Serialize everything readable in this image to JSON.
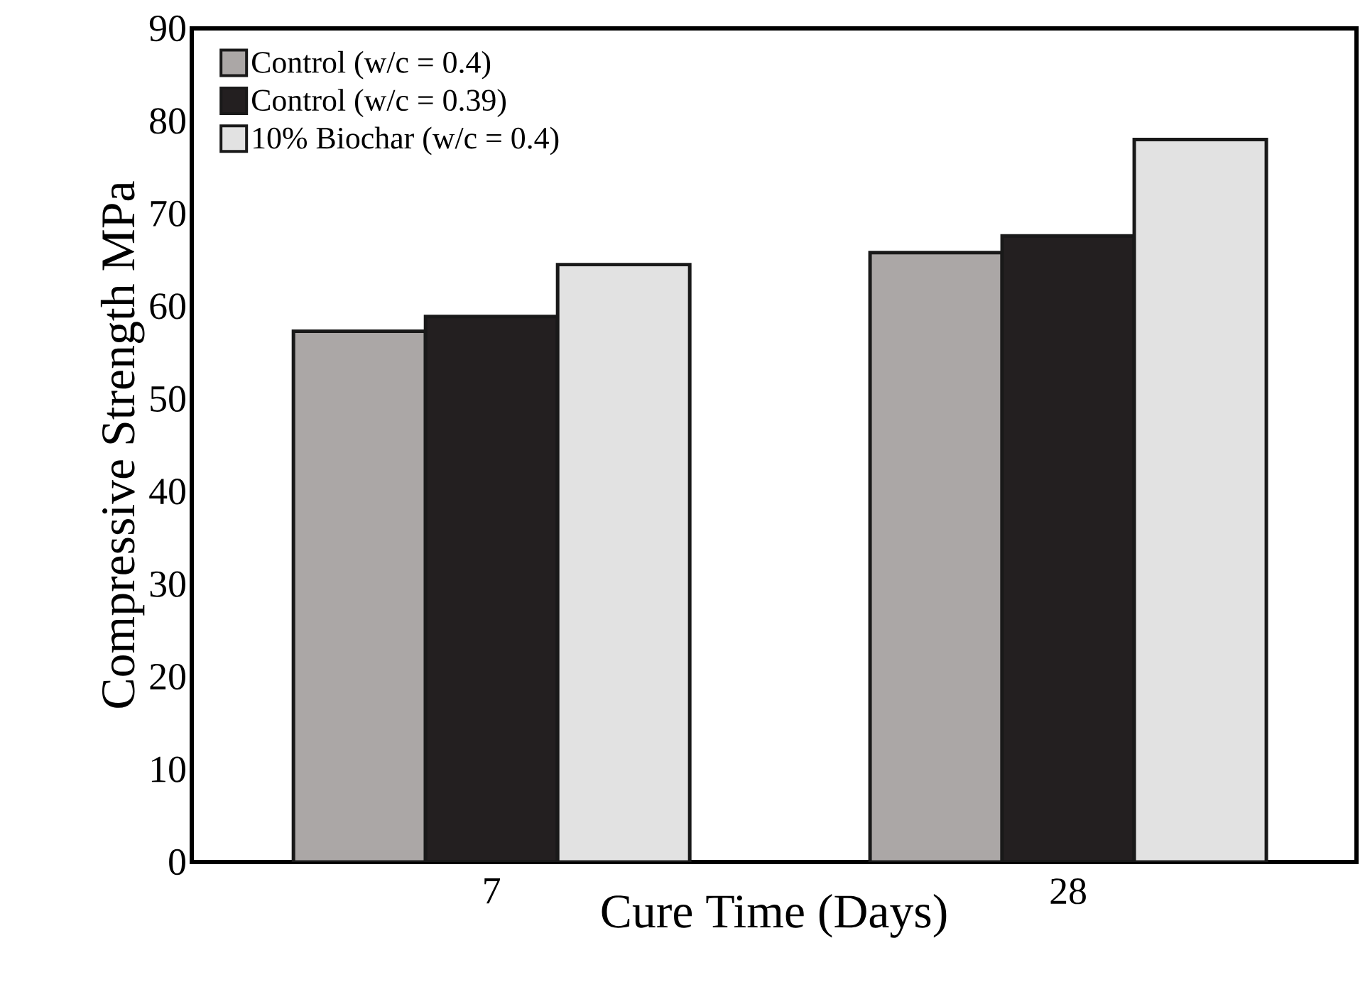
{
  "chart_data": {
    "type": "bar",
    "xlabel": "Cure Time (Days)",
    "ylabel": "Compressive Strength MPa",
    "categories": [
      "7",
      "28"
    ],
    "series": [
      {
        "name": "Control (w/c = 0.4)",
        "color": "#aba7a6",
        "values": [
          57.3,
          65.8
        ]
      },
      {
        "name": "Control (w/c = 0.39)",
        "color": "#231f20",
        "values": [
          58.9,
          67.6
        ]
      },
      {
        "name": "10% Biochar (w/c = 0.4)",
        "color": "#e2e2e2",
        "values": [
          64.5,
          78.0
        ]
      }
    ],
    "ylim": [
      0,
      90
    ],
    "yticks": [
      0,
      10,
      20,
      30,
      40,
      50,
      60,
      70,
      80,
      90
    ],
    "grid": false,
    "legend": "top left"
  }
}
